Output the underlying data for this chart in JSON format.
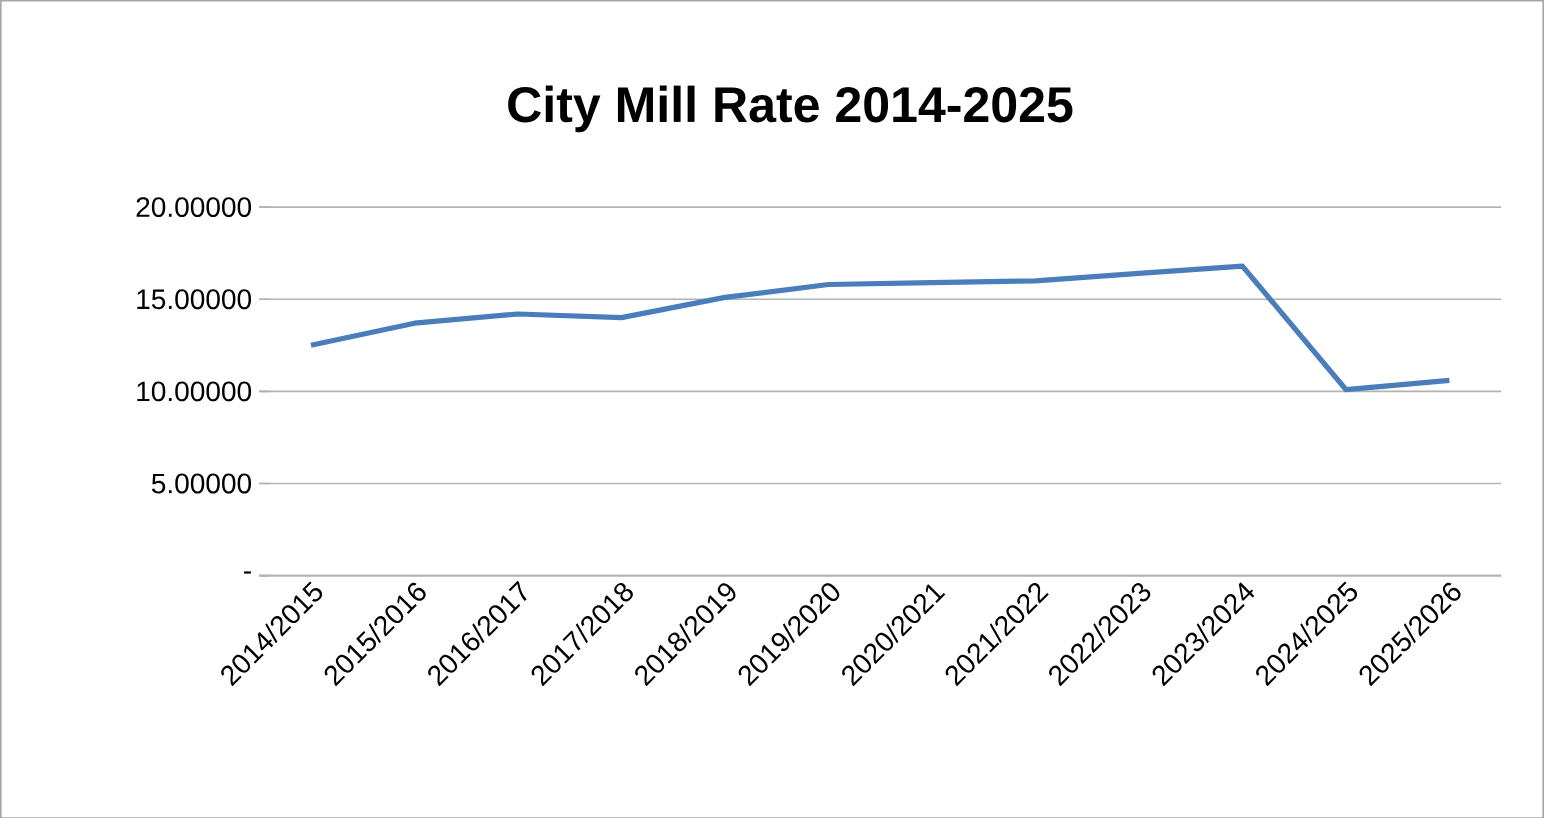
{
  "chart_data": {
    "type": "line",
    "title": "City Mill Rate 2014-2025",
    "categories": [
      "2014/2015",
      "2015/2016",
      "2016/2017",
      "2017/2018",
      "2018/2019",
      "2019/2020",
      "2020/2021",
      "2021/2022",
      "2022/2023",
      "2023/2024",
      "2024/2025",
      "2025/2026"
    ],
    "series": [
      {
        "color": "#4a7ebb",
        "values": [
          12.5,
          13.7,
          14.2,
          14.0,
          15.1,
          15.8,
          15.9,
          16.0,
          16.4,
          16.8,
          10.1,
          10.6
        ]
      }
    ],
    "ylim": [
      0,
      20
    ],
    "yticks": [
      {
        "value": 0,
        "label": "-"
      },
      {
        "value": 5,
        "label": "5.00000"
      },
      {
        "value": 10,
        "label": "10.00000"
      },
      {
        "value": 15,
        "label": "15.00000"
      },
      {
        "value": 20,
        "label": "20.00000"
      }
    ],
    "grid": "y",
    "marker": "none",
    "line_style": "solid"
  }
}
